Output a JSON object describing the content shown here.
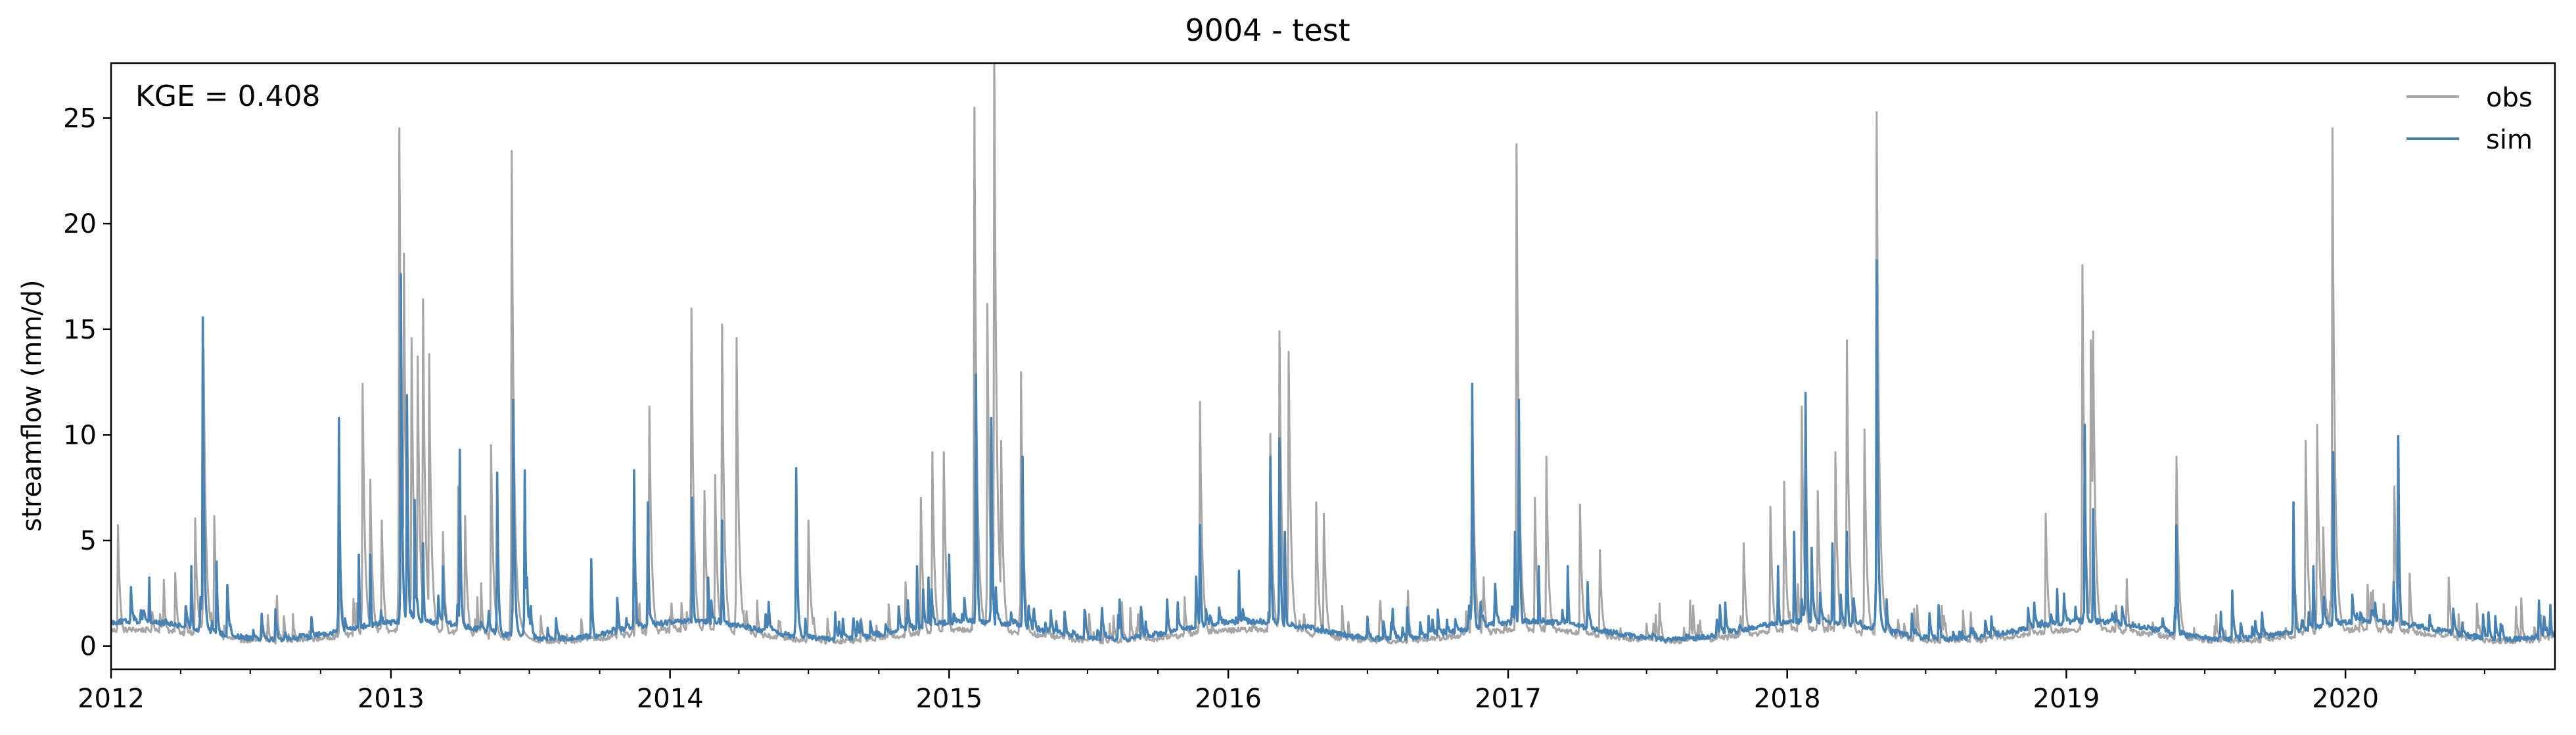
{
  "chart_data": {
    "type": "line",
    "title": "9004 - test",
    "xlabel": "",
    "ylabel": "streamflow (mm/d)",
    "annotation": "KGE = 0.408",
    "x_range": [
      "2012-01-01",
      "2020-10-01"
    ],
    "ylim": [
      -1.1,
      27.6
    ],
    "x_tick_labels": [
      "2012",
      "2013",
      "2014",
      "2015",
      "2016",
      "2017",
      "2018",
      "2019",
      "2020"
    ],
    "y_ticks": [
      0,
      5,
      10,
      15,
      20,
      25
    ],
    "grid": false,
    "legend_position": "top-right",
    "colors": {
      "obs": "#a6a6a6",
      "sim": "#4682b4"
    },
    "baseline": {
      "obs": 0.45,
      "sim": 0.7
    },
    "series": [
      {
        "name": "obs",
        "color": "#a6a6a6",
        "peaks": [
          [
            "2012-01-10",
            5.3
          ],
          [
            "2012-03-25",
            3.2
          ],
          [
            "2012-04-20",
            5.6
          ],
          [
            "2012-05-01",
            13.0
          ],
          [
            "2012-05-15",
            5.7
          ],
          [
            "2012-10-26",
            4.5
          ],
          [
            "2012-11-25",
            11.5
          ],
          [
            "2012-12-05",
            7.3
          ],
          [
            "2012-12-20",
            5.5
          ],
          [
            "2013-01-12",
            22.7
          ],
          [
            "2013-01-18",
            17.2
          ],
          [
            "2013-01-28",
            13.5
          ],
          [
            "2013-02-05",
            12.7
          ],
          [
            "2013-02-12",
            15.2
          ],
          [
            "2013-02-20",
            12.8
          ],
          [
            "2013-03-10",
            5.0
          ],
          [
            "2013-03-30",
            7.0
          ],
          [
            "2013-04-08",
            5.7
          ],
          [
            "2013-05-12",
            8.8
          ],
          [
            "2013-06-08",
            21.7
          ],
          [
            "2013-12-05",
            10.5
          ],
          [
            "2014-01-29",
            14.8
          ],
          [
            "2014-02-15",
            6.8
          ],
          [
            "2014-03-01",
            7.5
          ],
          [
            "2014-03-10",
            14.1
          ],
          [
            "2014-03-29",
            13.5
          ],
          [
            "2014-07-01",
            5.5
          ],
          [
            "2014-11-05",
            2.8
          ],
          [
            "2014-11-25",
            6.5
          ],
          [
            "2014-12-10",
            8.5
          ],
          [
            "2014-12-25",
            8.5
          ],
          [
            "2015-02-03",
            23.6
          ],
          [
            "2015-02-20",
            15.0
          ],
          [
            "2015-03-01",
            26.3
          ],
          [
            "2015-03-10",
            9.0
          ],
          [
            "2015-04-05",
            12.0
          ],
          [
            "2015-11-25",
            10.7
          ],
          [
            "2016-02-25",
            9.3
          ],
          [
            "2016-03-08",
            13.8
          ],
          [
            "2016-03-20",
            12.9
          ],
          [
            "2016-04-25",
            6.3
          ],
          [
            "2016-05-05",
            5.8
          ],
          [
            "2016-11-15",
            11.5
          ],
          [
            "2017-01-12",
            22.0
          ],
          [
            "2017-02-05",
            6.5
          ],
          [
            "2017-02-20",
            8.3
          ],
          [
            "2017-04-05",
            6.2
          ],
          [
            "2017-05-01",
            4.2
          ],
          [
            "2017-11-05",
            4.5
          ],
          [
            "2017-12-10",
            6.1
          ],
          [
            "2017-12-28",
            7.2
          ],
          [
            "2018-01-20",
            10.5
          ],
          [
            "2018-02-10",
            6.8
          ],
          [
            "2018-03-05",
            8.5
          ],
          [
            "2018-03-20",
            13.4
          ],
          [
            "2018-04-12",
            9.5
          ],
          [
            "2018-04-28",
            23.4
          ],
          [
            "2018-12-05",
            5.8
          ],
          [
            "2019-01-22",
            16.7
          ],
          [
            "2019-02-02",
            13.4
          ],
          [
            "2019-02-05",
            13.8
          ],
          [
            "2019-05-25",
            8.3
          ],
          [
            "2019-11-10",
            9.0
          ],
          [
            "2019-11-25",
            9.7
          ],
          [
            "2019-12-03",
            5.2
          ],
          [
            "2019-12-15",
            22.7
          ],
          [
            "2020-03-05",
            7.0
          ],
          [
            "2020-05-15",
            3.0
          ]
        ]
      },
      {
        "name": "sim",
        "color": "#4682b4",
        "peaks": [
          [
            "2012-02-20",
            3.0
          ],
          [
            "2012-04-15",
            3.5
          ],
          [
            "2012-04-30",
            14.4
          ],
          [
            "2012-05-18",
            3.7
          ],
          [
            "2012-10-25",
            10.0
          ],
          [
            "2012-11-20",
            4.0
          ],
          [
            "2012-12-05",
            4.0
          ],
          [
            "2013-01-14",
            16.3
          ],
          [
            "2013-01-22",
            11.0
          ],
          [
            "2013-02-01",
            6.4
          ],
          [
            "2013-02-12",
            4.5
          ],
          [
            "2013-03-10",
            3.5
          ],
          [
            "2013-04-01",
            8.6
          ],
          [
            "2013-05-20",
            7.6
          ],
          [
            "2013-06-10",
            10.8
          ],
          [
            "2013-06-25",
            7.7
          ],
          [
            "2013-09-20",
            3.8
          ],
          [
            "2013-11-15",
            7.7
          ],
          [
            "2013-12-03",
            6.3
          ],
          [
            "2014-01-30",
            6.5
          ],
          [
            "2014-02-20",
            3.0
          ],
          [
            "2014-03-10",
            5.5
          ],
          [
            "2014-06-15",
            7.8
          ],
          [
            "2014-11-20",
            3.5
          ],
          [
            "2014-12-05",
            3.0
          ],
          [
            "2015-01-01",
            4.0
          ],
          [
            "2015-02-05",
            11.9
          ],
          [
            "2015-02-25",
            10.0
          ],
          [
            "2015-04-07",
            8.3
          ],
          [
            "2015-11-25",
            5.3
          ],
          [
            "2016-01-15",
            3.3
          ],
          [
            "2016-02-25",
            8.3
          ],
          [
            "2016-03-08",
            9.1
          ],
          [
            "2016-03-15",
            5.0
          ],
          [
            "2016-11-15",
            11.5
          ],
          [
            "2017-01-10",
            5.0
          ],
          [
            "2017-01-15",
            10.8
          ],
          [
            "2017-02-10",
            3.5
          ],
          [
            "2017-03-20",
            3.5
          ],
          [
            "2017-04-15",
            2.8
          ],
          [
            "2017-12-20",
            3.5
          ],
          [
            "2018-01-10",
            5.0
          ],
          [
            "2018-01-25",
            11.1
          ],
          [
            "2018-03-01",
            4.5
          ],
          [
            "2018-03-20",
            5.0
          ],
          [
            "2018-04-28",
            16.9
          ],
          [
            "2018-12-20",
            2.5
          ],
          [
            "2019-01-25",
            9.7
          ],
          [
            "2019-02-05",
            6.0
          ],
          [
            "2019-05-25",
            5.3
          ],
          [
            "2019-10-25",
            6.3
          ],
          [
            "2019-11-20",
            3.5
          ],
          [
            "2019-12-16",
            8.5
          ],
          [
            "2020-03-10",
            9.2
          ],
          [
            "2020-09-25",
            1.8
          ]
        ]
      }
    ]
  }
}
